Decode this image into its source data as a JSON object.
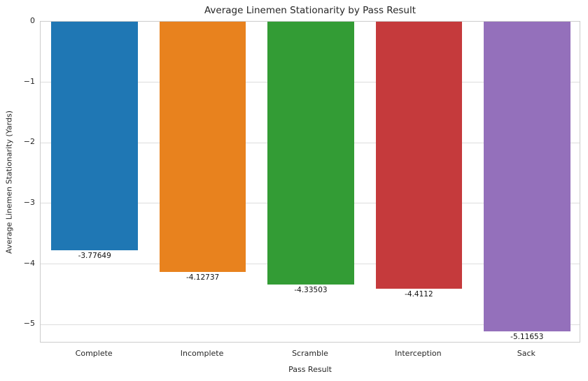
{
  "chart_data": {
    "type": "bar",
    "title": "Average Linemen Stationarity by Pass Result",
    "xlabel": "Pass Result",
    "ylabel": "Average Linemen Stationarity (Yards)",
    "categories": [
      "Complete",
      "Incomplete",
      "Scramble",
      "Interception",
      "Sack"
    ],
    "values": [
      -3.77649,
      -4.12737,
      -4.33503,
      -4.4112,
      -5.11653
    ],
    "value_labels": [
      "-3.77649",
      "-4.12737",
      "-4.33503",
      "-4.4112",
      "-5.11653"
    ],
    "bar_colors": [
      "#1f77b4",
      "#e8821e",
      "#339c35",
      "#c53a3c",
      "#9470bb"
    ],
    "ylim": [
      -5.31,
      0
    ],
    "yticks": [
      0,
      -1,
      -2,
      -3,
      -4,
      -5
    ],
    "ytick_labels": [
      "0",
      "−1",
      "−2",
      "−3",
      "−4",
      "−5"
    ],
    "grid": true,
    "legend_position": "none",
    "bar_width_fraction": 0.8
  }
}
